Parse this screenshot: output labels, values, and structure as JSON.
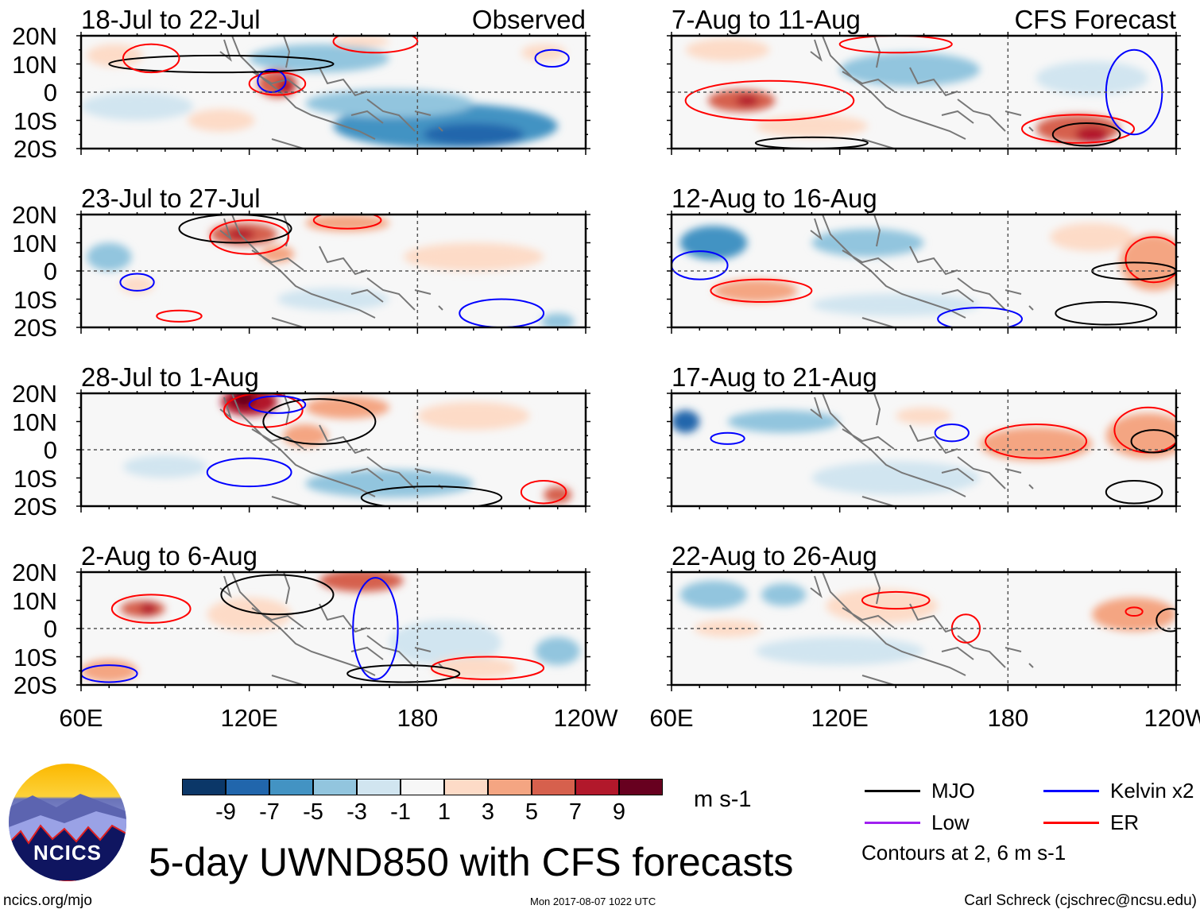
{
  "chart_data": {
    "type": "heatmap",
    "title": "5-day UWND850 with CFS forecasts",
    "units": "m s-1",
    "lon_range": [
      60,
      240
    ],
    "lat_range": [
      -20,
      20
    ],
    "lat_ticks": [
      "20N",
      "10N",
      "0",
      "10S",
      "20S"
    ],
    "lon_ticks": [
      {
        "lon": 60,
        "label": "60E"
      },
      {
        "lon": 120,
        "label": "120E"
      },
      {
        "lon": 180,
        "label": "180"
      },
      {
        "lon": 240,
        "label": "120W"
      }
    ],
    "colorbar": {
      "labels": [
        "-9",
        "-7",
        "-5",
        "-3",
        "-1",
        "1",
        "3",
        "5",
        "7",
        "9"
      ],
      "colors": [
        "#0b3768",
        "#2166ac",
        "#4393c3",
        "#92c5de",
        "#d1e5f0",
        "#f7f7f7",
        "#fddbc7",
        "#f4a582",
        "#d6604d",
        "#b2182b",
        "#67001f"
      ]
    },
    "contour_colors": {
      "MJO": "#000000",
      "Kelvin": "#0000ff",
      "Low": "#a020f0",
      "ER": "#ff0000"
    },
    "legend": {
      "items": [
        {
          "label": "MJO",
          "type": "MJO"
        },
        {
          "label": "Kelvin x2",
          "type": "Kelvin"
        },
        {
          "label": "Low",
          "type": "Low"
        },
        {
          "label": "ER",
          "type": "ER"
        }
      ],
      "note": "Contours at 2, 6 m s-1"
    },
    "panels": [
      {
        "title": "18-Jul to 22-Jul",
        "tag": "Observed",
        "anoms": [
          [
            145,
            12,
            25,
            5,
            -4
          ],
          [
            190,
            -12,
            40,
            8,
            -5
          ],
          [
            200,
            -15,
            18,
            4,
            -8
          ],
          [
            170,
            -4,
            30,
            5,
            -3
          ],
          [
            80,
            -5,
            20,
            5,
            -2
          ],
          [
            130,
            3,
            7,
            5,
            6
          ],
          [
            133,
            2,
            3,
            3,
            8
          ],
          [
            72,
            13,
            10,
            4,
            2
          ],
          [
            110,
            -10,
            12,
            4,
            2
          ],
          [
            225,
            14,
            8,
            3,
            3
          ],
          [
            160,
            18,
            10,
            2,
            2
          ]
        ],
        "contours": [
          [
            "ER",
            130,
            3,
            10,
            4
          ],
          [
            "Kelvin",
            128,
            4,
            5,
            4
          ],
          [
            "MJO",
            110,
            10,
            40,
            3
          ],
          [
            "ER",
            165,
            18,
            15,
            4
          ],
          [
            "Kelvin",
            228,
            12,
            6,
            3
          ],
          [
            "ER",
            85,
            12,
            10,
            5
          ]
        ]
      },
      {
        "title": "23-Jul to 27-Jul",
        "tag": "",
        "anoms": [
          [
            118,
            13,
            12,
            4,
            6
          ],
          [
            117,
            13,
            5,
            2,
            8
          ],
          [
            155,
            17,
            15,
            3,
            4
          ],
          [
            130,
            6,
            6,
            3,
            4
          ],
          [
            80,
            -5,
            6,
            3,
            2
          ],
          [
            200,
            5,
            25,
            5,
            1.5
          ],
          [
            70,
            5,
            8,
            5,
            -3
          ],
          [
            150,
            -10,
            20,
            4,
            -2
          ],
          [
            230,
            -18,
            6,
            3,
            -4
          ]
        ],
        "contours": [
          [
            "ER",
            120,
            12,
            14,
            6
          ],
          [
            "MJO",
            115,
            15,
            20,
            5
          ],
          [
            "ER",
            155,
            18,
            12,
            3
          ],
          [
            "Kelvin",
            80,
            -4,
            6,
            3
          ],
          [
            "Kelvin",
            210,
            -15,
            15,
            5
          ],
          [
            "ER",
            95,
            -16,
            8,
            2
          ]
        ]
      },
      {
        "title": "28-Jul to 1-Aug",
        "tag": "",
        "anoms": [
          [
            120,
            17,
            10,
            5,
            9
          ],
          [
            118,
            18,
            4,
            3,
            10
          ],
          [
            155,
            15,
            15,
            4,
            5
          ],
          [
            140,
            5,
            8,
            4,
            5
          ],
          [
            200,
            12,
            20,
            5,
            2
          ],
          [
            170,
            -12,
            30,
            5,
            -3
          ],
          [
            90,
            -6,
            15,
            4,
            -2
          ],
          [
            230,
            -16,
            5,
            3,
            6
          ]
        ],
        "contours": [
          [
            "ER",
            125,
            14,
            14,
            6
          ],
          [
            "MJO",
            145,
            10,
            20,
            8
          ],
          [
            "Kelvin",
            120,
            -8,
            15,
            5
          ],
          [
            "MJO",
            185,
            -17,
            25,
            4
          ],
          [
            "ER",
            225,
            -15,
            8,
            4
          ],
          [
            "Kelvin",
            130,
            16,
            10,
            3
          ]
        ]
      },
      {
        "title": "2-Aug to 6-Aug",
        "tag": "",
        "anoms": [
          [
            82,
            7,
            8,
            3,
            7
          ],
          [
            84,
            7,
            3,
            2,
            9
          ],
          [
            160,
            17,
            15,
            4,
            6
          ],
          [
            120,
            5,
            15,
            6,
            3
          ],
          [
            70,
            -15,
            10,
            4,
            4
          ],
          [
            190,
            -5,
            20,
            8,
            -2
          ],
          [
            230,
            -8,
            8,
            5,
            -3
          ],
          [
            200,
            -14,
            15,
            4,
            3
          ]
        ],
        "contours": [
          [
            "ER",
            85,
            7,
            14,
            5
          ],
          [
            "Kelvin",
            165,
            0,
            8,
            18
          ],
          [
            "MJO",
            130,
            12,
            20,
            7
          ],
          [
            "ER",
            205,
            -14,
            20,
            4
          ],
          [
            "MJO",
            175,
            -16,
            20,
            3
          ],
          [
            "Kelvin",
            70,
            -16,
            10,
            3
          ]
        ]
      },
      {
        "title": "7-Aug to 11-Aug",
        "tag": "CFS Forecast",
        "anoms": [
          [
            85,
            -3,
            12,
            4,
            7
          ],
          [
            87,
            -3,
            4,
            2,
            8
          ],
          [
            205,
            -13,
            15,
            5,
            7
          ],
          [
            210,
            -15,
            6,
            3,
            9
          ],
          [
            145,
            8,
            25,
            6,
            -4
          ],
          [
            80,
            15,
            15,
            4,
            2
          ],
          [
            210,
            5,
            20,
            6,
            -2
          ],
          [
            110,
            -12,
            20,
            4,
            2
          ]
        ],
        "contours": [
          [
            "ER",
            95,
            -3,
            30,
            7
          ],
          [
            "ER",
            205,
            -13,
            20,
            5
          ],
          [
            "MJO",
            208,
            -15,
            12,
            4
          ],
          [
            "Kelvin",
            225,
            0,
            10,
            15
          ],
          [
            "ER",
            140,
            17,
            20,
            3
          ],
          [
            "MJO",
            110,
            -18,
            20,
            2
          ]
        ]
      },
      {
        "title": "12-Aug to 16-Aug",
        "tag": "",
        "anoms": [
          [
            75,
            10,
            12,
            6,
            -6
          ],
          [
            130,
            10,
            20,
            5,
            -4
          ],
          [
            90,
            -7,
            15,
            4,
            4
          ],
          [
            232,
            3,
            12,
            10,
            5
          ],
          [
            210,
            12,
            15,
            5,
            2
          ],
          [
            140,
            -12,
            30,
            4,
            -2
          ]
        ],
        "contours": [
          [
            "ER",
            92,
            -7,
            18,
            4
          ],
          [
            "ER",
            232,
            4,
            10,
            8
          ],
          [
            "MJO",
            225,
            0,
            15,
            3
          ],
          [
            "Kelvin",
            70,
            2,
            10,
            5
          ],
          [
            "Kelvin",
            170,
            -17,
            15,
            4
          ],
          [
            "MJO",
            215,
            -15,
            18,
            4
          ]
        ]
      },
      {
        "title": "17-Aug to 21-Aug",
        "tag": "",
        "anoms": [
          [
            65,
            10,
            5,
            4,
            -7
          ],
          [
            100,
            10,
            20,
            4,
            -3
          ],
          [
            190,
            2,
            20,
            6,
            4
          ],
          [
            230,
            5,
            15,
            8,
            4
          ],
          [
            140,
            -10,
            30,
            6,
            -2
          ],
          [
            150,
            12,
            10,
            3,
            2
          ]
        ],
        "contours": [
          [
            "ER",
            190,
            3,
            18,
            6
          ],
          [
            "ER",
            230,
            7,
            12,
            8
          ],
          [
            "MJO",
            232,
            3,
            8,
            4
          ],
          [
            "Kelvin",
            80,
            4,
            6,
            2
          ],
          [
            "Kelvin",
            160,
            6,
            6,
            3
          ],
          [
            "MJO",
            225,
            -15,
            10,
            4
          ]
        ]
      },
      {
        "title": "22-Aug to 26-Aug",
        "tag": "",
        "anoms": [
          [
            75,
            12,
            12,
            5,
            -4
          ],
          [
            100,
            12,
            8,
            4,
            -4
          ],
          [
            135,
            8,
            20,
            6,
            2
          ],
          [
            225,
            5,
            15,
            6,
            4
          ],
          [
            120,
            -8,
            30,
            5,
            -2
          ],
          [
            80,
            0,
            12,
            3,
            2
          ]
        ],
        "contours": [
          [
            "ER",
            140,
            10,
            12,
            3
          ],
          [
            "ER",
            165,
            0,
            5,
            5
          ],
          [
            "ER",
            225,
            6,
            3,
            1.5
          ],
          [
            "MJO",
            238,
            3,
            5,
            4
          ]
        ]
      }
    ],
    "credits": {
      "left": "ncics.org/mjo",
      "center": "Mon 2017-08-07 1022 UTC",
      "right": "Carl Schreck (cjschrec@ncsu.edu)",
      "logo": "NCICS"
    }
  }
}
